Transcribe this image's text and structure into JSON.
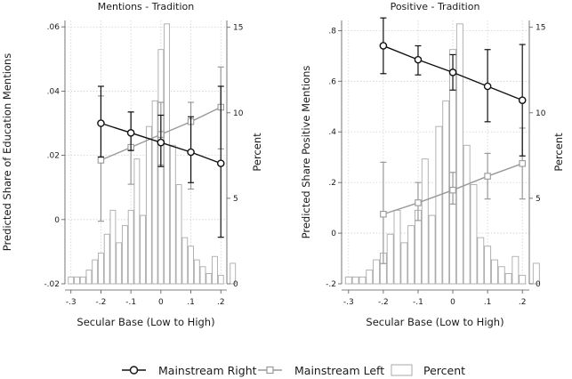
{
  "chart_data": [
    {
      "type": "line",
      "title": "Mentions - Tradition",
      "xlabel": "Secular Base (Low to High)",
      "ylabel": "Predicted Share of Education Mentions",
      "y2label": "Percent",
      "xlim": [
        -0.32,
        0.22
      ],
      "ylim": [
        -0.02,
        0.062
      ],
      "y2lim": [
        0,
        15.4
      ],
      "xticks": [
        -0.3,
        -0.2,
        -0.1,
        0,
        0.1,
        0.2
      ],
      "xtick_labels": [
        "-.3",
        "-.2",
        "-.1",
        "0",
        ".1",
        ".2"
      ],
      "yticks": [
        -0.02,
        0,
        0.02,
        0.04,
        0.06
      ],
      "ytick_labels": [
        "-.02",
        "0",
        ".02",
        ".04",
        ".06"
      ],
      "y2ticks": [
        0,
        5,
        10,
        15
      ],
      "y2tick_labels": [
        "0",
        "5",
        "10",
        "15"
      ],
      "x": [
        -0.2,
        -0.1,
        0,
        0.1,
        0.2
      ],
      "series": [
        {
          "name": "Mainstream Right",
          "values": [
            0.03,
            0.027,
            0.024,
            0.021,
            0.0175
          ],
          "ci_low": [
            0.0195,
            0.0215,
            0.0165,
            0.0115,
            -0.0055
          ],
          "ci_high": [
            0.0415,
            0.0335,
            0.0325,
            0.032,
            0.0415
          ]
        },
        {
          "name": "Mainstream Left",
          "values": [
            0.0185,
            0.0225,
            0.0265,
            0.0305,
            0.035
          ],
          "ci_low": [
            -0.0005,
            0.011,
            0.017,
            0.0095,
            0.022
          ],
          "ci_high": [
            0.0385,
            0.0335,
            0.0365,
            0.0365,
            0.0475
          ]
        }
      ],
      "histogram": {
        "name": "Percent",
        "x": [
          -0.3,
          -0.28,
          -0.26,
          -0.24,
          -0.22,
          -0.2,
          -0.18,
          -0.16,
          -0.14,
          -0.12,
          -0.1,
          -0.08,
          -0.06,
          -0.04,
          -0.02,
          0,
          0.02,
          0.04,
          0.06,
          0.08,
          0.1,
          0.12,
          0.14,
          0.16,
          0.18,
          0.2,
          0.24
        ],
        "values": [
          0.4,
          0.4,
          0.4,
          0.8,
          1.4,
          1.8,
          2.9,
          4.3,
          2.4,
          3.4,
          4.3,
          7.3,
          4.0,
          9.2,
          10.7,
          13.7,
          15.2,
          8.1,
          5.8,
          2.7,
          2.2,
          1.4,
          1.0,
          0.6,
          1.6,
          0.5,
          1.2
        ]
      }
    },
    {
      "type": "line",
      "title": "Positive - Tradition",
      "xlabel": "Secular Base (Low to High)",
      "ylabel": "Predicted Share Positive Mentions",
      "y2label": "Percent",
      "xlim": [
        -0.32,
        0.22
      ],
      "ylim": [
        -0.2,
        0.84
      ],
      "y2lim": [
        0,
        15.4
      ],
      "xticks": [
        -0.3,
        -0.2,
        -0.1,
        0,
        0.1,
        0.2
      ],
      "xtick_labels": [
        "-.3",
        "-.2",
        "-.1",
        "0",
        ".1",
        ".2"
      ],
      "yticks": [
        -0.2,
        0,
        0.2,
        0.4,
        0.6,
        0.8
      ],
      "ytick_labels": [
        "-.2",
        "0",
        ".2",
        ".4",
        ".6",
        ".8"
      ],
      "y2ticks": [
        0,
        5,
        10,
        15
      ],
      "y2tick_labels": [
        "0",
        "5",
        "10",
        "15"
      ],
      "x": [
        -0.2,
        -0.1,
        0,
        0.1,
        0.2
      ],
      "series": [
        {
          "name": "Mainstream Right",
          "values": [
            0.74,
            0.685,
            0.635,
            0.58,
            0.525
          ],
          "ci_low": [
            0.63,
            0.625,
            0.565,
            0.44,
            0.305
          ],
          "ci_high": [
            0.85,
            0.74,
            0.705,
            0.725,
            0.745
          ]
        },
        {
          "name": "Mainstream Left",
          "values": [
            0.075,
            0.12,
            0.17,
            0.225,
            0.275
          ],
          "ci_low": [
            -0.12,
            0.05,
            0.115,
            0.135,
            0.135
          ],
          "ci_high": [
            0.28,
            0.2,
            0.24,
            0.315,
            0.415
          ]
        }
      ],
      "histogram": {
        "name": "Percent",
        "x": [
          -0.3,
          -0.28,
          -0.26,
          -0.24,
          -0.22,
          -0.2,
          -0.18,
          -0.16,
          -0.14,
          -0.12,
          -0.1,
          -0.08,
          -0.06,
          -0.04,
          -0.02,
          0,
          0.02,
          0.04,
          0.06,
          0.08,
          0.1,
          0.12,
          0.14,
          0.16,
          0.18,
          0.2,
          0.24
        ],
        "values": [
          0.4,
          0.4,
          0.4,
          0.8,
          1.4,
          1.8,
          2.9,
          4.3,
          2.4,
          3.4,
          4.3,
          7.3,
          4.0,
          9.2,
          10.7,
          13.7,
          15.2,
          8.1,
          5.8,
          2.7,
          2.2,
          1.4,
          1.0,
          0.6,
          1.6,
          0.5,
          1.2
        ]
      }
    }
  ],
  "legend": {
    "items": [
      {
        "label": "Mainstream Right",
        "kind": "line-circle"
      },
      {
        "label": "Mainstream Left",
        "kind": "line-square"
      },
      {
        "label": "Percent",
        "kind": "bar"
      }
    ]
  },
  "colors": {
    "right": "#111111",
    "left": "#999999",
    "bar_edge": "#aaaaaa",
    "grid": "#d0d0d0",
    "axis": "#555555"
  }
}
